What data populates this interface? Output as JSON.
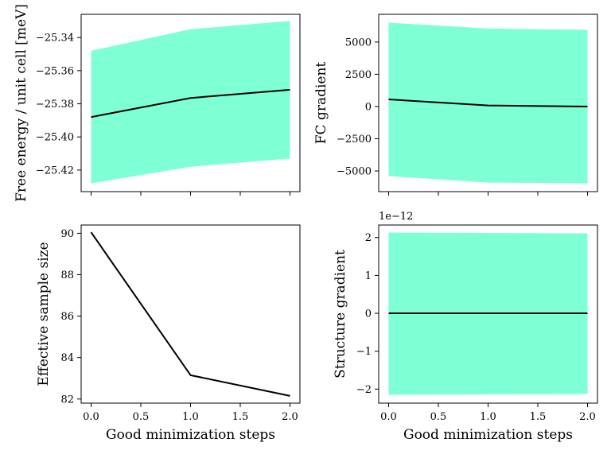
{
  "chart_data": [
    {
      "type": "line",
      "panel": "top-left",
      "x": [
        0,
        1,
        2
      ],
      "series": [
        {
          "values": [
            -25.388,
            -25.3765,
            -25.3715
          ],
          "lower": [
            -25.428,
            -25.418,
            -25.413
          ],
          "upper": [
            -25.348,
            -25.335,
            -25.33
          ],
          "color": "#000000",
          "band_color": "#7fffd4"
        }
      ],
      "xlabel": "",
      "ylabel": "Free energy / unit cell [meV]",
      "xlim": [
        -0.1,
        2.1
      ],
      "ylim": [
        -25.433,
        -25.326
      ],
      "xticks": [
        0,
        0.5,
        1.0,
        1.5,
        2.0
      ],
      "yticks": [
        -25.42,
        -25.4,
        -25.38,
        -25.36,
        -25.34
      ],
      "ytick_labels": [
        "−25.42",
        "−25.40",
        "−25.38",
        "−25.36",
        "−25.34"
      ],
      "show_xtick_labels": false,
      "grid": false
    },
    {
      "type": "line",
      "panel": "top-right",
      "x": [
        0,
        1,
        2
      ],
      "series": [
        {
          "values": [
            550,
            80,
            0
          ],
          "lower": [
            -5400,
            -5900,
            -5950
          ],
          "upper": [
            6500,
            6050,
            5950
          ],
          "color": "#000000",
          "band_color": "#7fffd4"
        }
      ],
      "xlabel": "",
      "ylabel": "FC gradient",
      "xlim": [
        -0.1,
        2.1
      ],
      "ylim": [
        -6600,
        7150
      ],
      "xticks": [
        0,
        0.5,
        1.0,
        1.5,
        2.0
      ],
      "yticks": [
        -5000,
        -2500,
        0,
        2500,
        5000
      ],
      "ytick_labels": [
        "−5000",
        "−2500",
        "0",
        "2500",
        "5000"
      ],
      "show_xtick_labels": false,
      "grid": false
    },
    {
      "type": "line",
      "panel": "bottom-left",
      "x": [
        0,
        1,
        2
      ],
      "series": [
        {
          "values": [
            90.05,
            83.15,
            82.15
          ],
          "color": "#000000"
        }
      ],
      "xlabel": "Good minimization steps",
      "ylabel": "Effective sample size",
      "xlim": [
        -0.1,
        2.1
      ],
      "ylim": [
        81.8,
        90.4
      ],
      "xticks": [
        0,
        0.5,
        1.0,
        1.5,
        2.0
      ],
      "xtick_labels": [
        "0.0",
        "0.5",
        "1.0",
        "1.5",
        "2.0"
      ],
      "yticks": [
        82,
        84,
        86,
        88,
        90
      ],
      "ytick_labels": [
        "82",
        "84",
        "86",
        "88",
        "90"
      ],
      "show_xtick_labels": true,
      "grid": false
    },
    {
      "type": "line",
      "panel": "bottom-right",
      "x": [
        0,
        1,
        2
      ],
      "series": [
        {
          "values": [
            0,
            0,
            0
          ],
          "lower": [
            -2.15,
            -2.14,
            -2.13
          ],
          "upper": [
            2.13,
            2.12,
            2.11
          ],
          "color": "#000000",
          "band_color": "#7fffd4"
        }
      ],
      "xlabel": "Good minimization steps",
      "ylabel": "Structure gradient",
      "offset_label": "1e−12",
      "xlim": [
        -0.1,
        2.1
      ],
      "ylim": [
        -2.37,
        2.33
      ],
      "xticks": [
        0,
        0.5,
        1.0,
        1.5,
        2.0
      ],
      "xtick_labels": [
        "0.0",
        "0.5",
        "1.0",
        "1.5",
        "2.0"
      ],
      "yticks": [
        -2,
        -1,
        0,
        1,
        2
      ],
      "ytick_labels": [
        "−2",
        "−1",
        "0",
        "1",
        "2"
      ],
      "show_xtick_labels": true,
      "grid": false
    }
  ]
}
